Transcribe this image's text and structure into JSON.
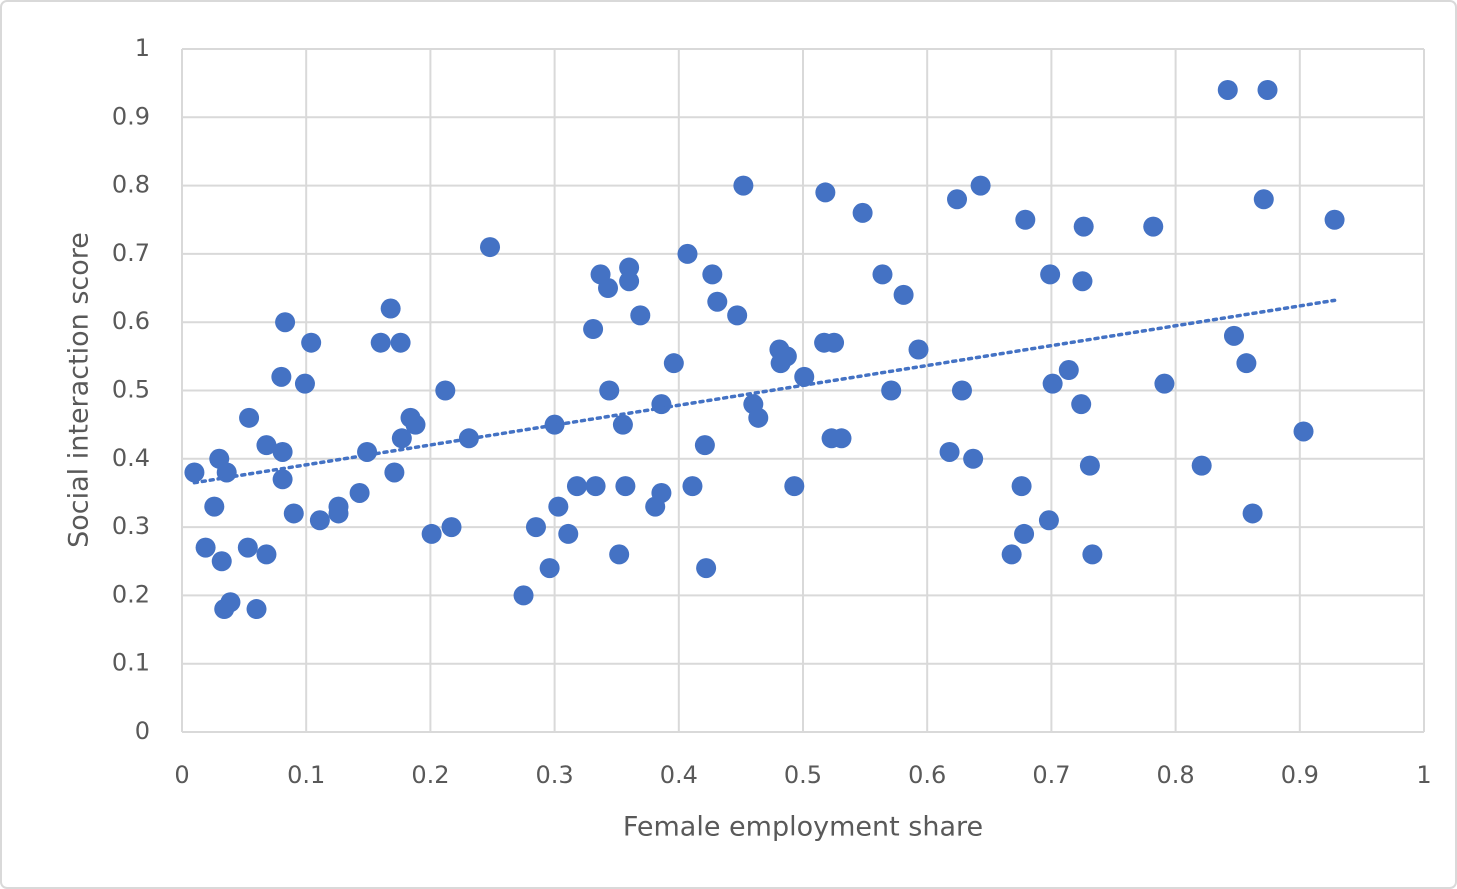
{
  "chart_data": {
    "type": "scatter",
    "x_label": "Female employment share",
    "y_label": "Social interaction score",
    "color": "#4472c4",
    "grid": true,
    "xlim": [
      0,
      1
    ],
    "xticks": [
      0,
      0.1,
      0.2,
      0.3,
      0.4,
      0.5,
      0.6,
      0.7,
      0.8,
      0.9,
      1
    ],
    "ylim": [
      0,
      1
    ],
    "yticks": [
      0,
      0.1,
      0.2,
      0.3,
      0.4,
      0.5,
      0.6,
      0.7,
      0.8,
      0.9,
      1
    ],
    "x": [
      0.01,
      0.019,
      0.026,
      0.03,
      0.032,
      0.036,
      0.034,
      0.039,
      0.054,
      0.053,
      0.06,
      0.068,
      0.068,
      0.08,
      0.081,
      0.081,
      0.083,
      0.09,
      0.099,
      0.104,
      0.111,
      0.126,
      0.126,
      0.143,
      0.149,
      0.16,
      0.168,
      0.171,
      0.176,
      0.177,
      0.184,
      0.188,
      0.201,
      0.212,
      0.217,
      0.231,
      0.248,
      0.275,
      0.285,
      0.296,
      0.3,
      0.303,
      0.311,
      0.318,
      0.331,
      0.333,
      0.337,
      0.343,
      0.344,
      0.352,
      0.355,
      0.357,
      0.36,
      0.36,
      0.369,
      0.381,
      0.386,
      0.386,
      0.396,
      0.407,
      0.411,
      0.421,
      0.422,
      0.427,
      0.431,
      0.447,
      0.452,
      0.46,
      0.464,
      0.481,
      0.482,
      0.487,
      0.493,
      0.501,
      0.518,
      0.517,
      0.525,
      0.523,
      0.531,
      0.548,
      0.564,
      0.571,
      0.581,
      0.593,
      0.618,
      0.624,
      0.628,
      0.637,
      0.643,
      0.668,
      0.676,
      0.678,
      0.679,
      0.698,
      0.699,
      0.701,
      0.714,
      0.724,
      0.725,
      0.726,
      0.731,
      0.733,
      0.782,
      0.791,
      0.821,
      0.842,
      0.847,
      0.857,
      0.862,
      0.871,
      0.874,
      0.903,
      0.928
    ],
    "values": [
      0.38,
      0.27,
      0.33,
      0.4,
      0.25,
      0.38,
      0.18,
      0.19,
      0.46,
      0.27,
      0.18,
      0.42,
      0.26,
      0.52,
      0.41,
      0.37,
      0.6,
      0.32,
      0.51,
      0.57,
      0.31,
      0.33,
      0.32,
      0.35,
      0.41,
      0.57,
      0.62,
      0.38,
      0.57,
      0.43,
      0.46,
      0.45,
      0.29,
      0.5,
      0.3,
      0.43,
      0.71,
      0.2,
      0.3,
      0.24,
      0.45,
      0.33,
      0.29,
      0.36,
      0.59,
      0.36,
      0.67,
      0.65,
      0.5,
      0.26,
      0.45,
      0.36,
      0.68,
      0.66,
      0.61,
      0.33,
      0.35,
      0.48,
      0.54,
      0.7,
      0.36,
      0.42,
      0.24,
      0.67,
      0.63,
      0.61,
      0.8,
      0.48,
      0.46,
      0.56,
      0.54,
      0.55,
      0.36,
      0.52,
      0.79,
      0.57,
      0.57,
      0.43,
      0.43,
      0.76,
      0.67,
      0.5,
      0.64,
      0.56,
      0.41,
      0.78,
      0.5,
      0.4,
      0.8,
      0.26,
      0.36,
      0.29,
      0.75,
      0.31,
      0.67,
      0.51,
      0.53,
      0.48,
      0.66,
      0.74,
      0.39,
      0.26,
      0.74,
      0.51,
      0.39,
      0.94,
      0.58,
      0.54,
      0.32,
      0.78,
      0.94,
      0.44,
      0.75
    ],
    "trendline": {
      "x": [
        0.01,
        0.928
      ],
      "y": [
        0.365,
        0.632
      ]
    }
  }
}
